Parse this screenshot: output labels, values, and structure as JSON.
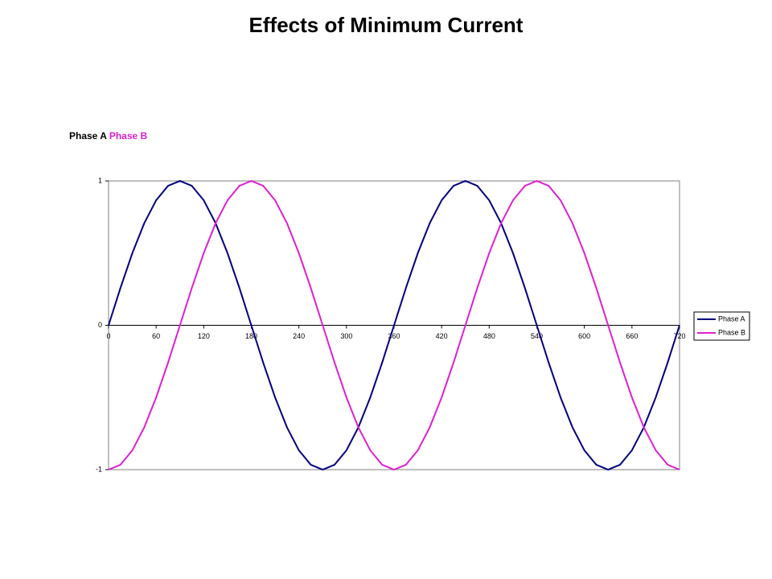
{
  "chart_data": {
    "type": "line",
    "title": "Effects of Minimum Current",
    "x": [
      0,
      15,
      30,
      45,
      60,
      75,
      90,
      105,
      120,
      135,
      150,
      165,
      180,
      195,
      210,
      225,
      240,
      255,
      270,
      285,
      300,
      315,
      330,
      345,
      360,
      375,
      390,
      405,
      420,
      435,
      450,
      465,
      480,
      495,
      510,
      525,
      540,
      555,
      570,
      585,
      600,
      615,
      630,
      645,
      660,
      675,
      690,
      705,
      720
    ],
    "series": [
      {
        "name": "Phase A",
        "color": "#000080",
        "values": [
          0,
          0.259,
          0.5,
          0.707,
          0.866,
          0.966,
          1,
          0.966,
          0.866,
          0.707,
          0.5,
          0.259,
          0,
          -0.259,
          -0.5,
          -0.707,
          -0.866,
          -0.966,
          -1,
          -0.966,
          -0.866,
          -0.707,
          -0.5,
          -0.259,
          0,
          0.259,
          0.5,
          0.707,
          0.866,
          0.966,
          1,
          0.966,
          0.866,
          0.707,
          0.5,
          0.259,
          0,
          -0.259,
          -0.5,
          -0.707,
          -0.866,
          -0.966,
          -1,
          -0.966,
          -0.866,
          -0.707,
          -0.5,
          -0.259,
          0
        ]
      },
      {
        "name": "Phase B",
        "color": "#e020d0",
        "values": [
          -1,
          -0.966,
          -0.866,
          -0.707,
          -0.5,
          -0.259,
          0,
          0.259,
          0.5,
          0.707,
          0.866,
          0.966,
          1,
          0.966,
          0.866,
          0.707,
          0.5,
          0.259,
          0,
          -0.259,
          -0.5,
          -0.707,
          -0.866,
          -0.966,
          -1,
          -0.966,
          -0.866,
          -0.707,
          -0.5,
          -0.259,
          0,
          0.259,
          0.5,
          0.707,
          0.866,
          0.966,
          1,
          0.966,
          0.866,
          0.707,
          0.5,
          0.259,
          0,
          -0.259,
          -0.5,
          -0.707,
          -0.866,
          -0.966,
          -1
        ]
      }
    ],
    "xlim": [
      0,
      720
    ],
    "xticks": [
      0,
      60,
      120,
      180,
      240,
      300,
      360,
      420,
      480,
      540,
      600,
      660,
      720
    ],
    "ylim": [
      -1,
      1
    ],
    "yticks": [
      -1,
      0,
      1
    ],
    "legend": "right"
  }
}
